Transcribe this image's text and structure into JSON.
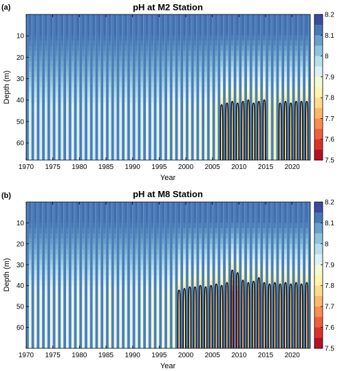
{
  "colors": {
    "colormap": [
      "#a50026",
      "#d73027",
      "#f46d43",
      "#fdae61",
      "#fee090",
      "#ffffbf",
      "#e0f3f8",
      "#abd9e9",
      "#74add1",
      "#4575b4",
      "#313695"
    ],
    "contour": "#000000"
  },
  "chart_data": [
    {
      "type": "heatmap",
      "panel_label": "(a)",
      "title": "pH at M2 Station",
      "xlabel": "Year",
      "ylabel": "Depth (m)",
      "xlim": [
        1970,
        2023.4
      ],
      "ylim": [
        0,
        68
      ],
      "y_reversed": true,
      "xticks": [
        "1970",
        "1975",
        "1980",
        "1985",
        "1990",
        "1995",
        "2000",
        "2005",
        "2010",
        "2015",
        "2020"
      ],
      "yticks": [
        "10",
        "20",
        "30",
        "40",
        "50",
        "60"
      ],
      "colorbar": {
        "range": [
          7.5,
          8.2
        ],
        "ticks": [
          "8.2",
          "8.1",
          "8",
          "7.9",
          "7.8",
          "7.7",
          "7.6",
          "7.5"
        ]
      },
      "contour_level": 7.8,
      "seasonal_minima": [
        {
          "year": 1970,
          "min_ph": 7.93
        },
        {
          "year": 1971,
          "min_ph": 7.92
        },
        {
          "year": 1972,
          "min_ph": 7.94
        },
        {
          "year": 1973,
          "min_ph": 7.93
        },
        {
          "year": 1974,
          "min_ph": 7.94
        },
        {
          "year": 1975,
          "min_ph": 7.93
        },
        {
          "year": 1976,
          "min_ph": 7.94
        },
        {
          "year": 1977,
          "min_ph": 7.93
        },
        {
          "year": 1978,
          "min_ph": 7.92
        },
        {
          "year": 1979,
          "min_ph": 7.93
        },
        {
          "year": 1980,
          "min_ph": 7.94
        },
        {
          "year": 1981,
          "min_ph": 7.93
        },
        {
          "year": 1982,
          "min_ph": 7.94
        },
        {
          "year": 1983,
          "min_ph": 7.93
        },
        {
          "year": 1984,
          "min_ph": 7.92
        },
        {
          "year": 1985,
          "min_ph": 7.93
        },
        {
          "year": 1986,
          "min_ph": 7.94
        },
        {
          "year": 1987,
          "min_ph": 7.93
        },
        {
          "year": 1988,
          "min_ph": 7.92
        },
        {
          "year": 1989,
          "min_ph": 7.93
        },
        {
          "year": 1990,
          "min_ph": 7.94
        },
        {
          "year": 1991,
          "min_ph": 7.93
        },
        {
          "year": 1992,
          "min_ph": 7.92
        },
        {
          "year": 1993,
          "min_ph": 7.93
        },
        {
          "year": 1994,
          "min_ph": 7.92
        },
        {
          "year": 1995,
          "min_ph": 7.93
        },
        {
          "year": 1996,
          "min_ph": 7.89
        },
        {
          "year": 1997,
          "min_ph": 7.88
        },
        {
          "year": 1998,
          "min_ph": 7.9
        },
        {
          "year": 1999,
          "min_ph": 7.89
        },
        {
          "year": 2000,
          "min_ph": 7.88
        },
        {
          "year": 2001,
          "min_ph": 7.9
        },
        {
          "year": 2002,
          "min_ph": 7.88
        },
        {
          "year": 2003,
          "min_ph": 7.89
        },
        {
          "year": 2004,
          "min_ph": 7.87
        },
        {
          "year": 2005,
          "min_ph": 7.86
        },
        {
          "year": 2006,
          "min_ph": 7.79
        },
        {
          "year": 2007,
          "min_ph": 7.78
        },
        {
          "year": 2008,
          "min_ph": 7.77
        },
        {
          "year": 2009,
          "min_ph": 7.78
        },
        {
          "year": 2010,
          "min_ph": 7.77
        },
        {
          "year": 2011,
          "min_ph": 7.76
        },
        {
          "year": 2012,
          "min_ph": 7.78
        },
        {
          "year": 2013,
          "min_ph": 7.77
        },
        {
          "year": 2014,
          "min_ph": 7.76
        },
        {
          "year": 2015,
          "min_ph": 7.83
        },
        {
          "year": 2016,
          "min_ph": 7.82
        },
        {
          "year": 2017,
          "min_ph": 7.78
        },
        {
          "year": 2018,
          "min_ph": 7.77
        },
        {
          "year": 2019,
          "min_ph": 7.78
        },
        {
          "year": 2020,
          "min_ph": 7.77
        },
        {
          "year": 2021,
          "min_ph": 7.77
        },
        {
          "year": 2022,
          "min_ph": 7.77
        },
        {
          "year": 2023,
          "min_ph": 7.78
        }
      ]
    },
    {
      "type": "heatmap",
      "panel_label": "(b)",
      "title": "pH at M8 Station",
      "xlabel": "Year",
      "ylabel": "Depth (m)",
      "xlim": [
        1970,
        2023.4
      ],
      "ylim": [
        0,
        70
      ],
      "y_reversed": true,
      "xticks": [
        "1970",
        "1975",
        "1980",
        "1985",
        "1990",
        "1995",
        "2000",
        "2005",
        "2010",
        "2015",
        "2020"
      ],
      "yticks": [
        "10",
        "20",
        "30",
        "40",
        "50",
        "60"
      ],
      "colorbar": {
        "range": [
          7.5,
          8.2
        ],
        "ticks": [
          "8.2",
          "8.1",
          "8",
          "7.9",
          "7.8",
          "7.7",
          "7.6",
          "7.5"
        ]
      },
      "contour_level": 7.8,
      "seasonal_minima": [
        {
          "year": 1970,
          "min_ph": 7.9
        },
        {
          "year": 1971,
          "min_ph": 7.89
        },
        {
          "year": 1972,
          "min_ph": 7.9
        },
        {
          "year": 1973,
          "min_ph": 7.91
        },
        {
          "year": 1974,
          "min_ph": 7.9
        },
        {
          "year": 1975,
          "min_ph": 7.89
        },
        {
          "year": 1976,
          "min_ph": 7.9
        },
        {
          "year": 1977,
          "min_ph": 7.91
        },
        {
          "year": 1978,
          "min_ph": 7.9
        },
        {
          "year": 1979,
          "min_ph": 7.89
        },
        {
          "year": 1980,
          "min_ph": 7.9
        },
        {
          "year": 1981,
          "min_ph": 7.91
        },
        {
          "year": 1982,
          "min_ph": 7.9
        },
        {
          "year": 1983,
          "min_ph": 7.89
        },
        {
          "year": 1984,
          "min_ph": 7.9
        },
        {
          "year": 1985,
          "min_ph": 7.86
        },
        {
          "year": 1986,
          "min_ph": 7.9
        },
        {
          "year": 1987,
          "min_ph": 7.89
        },
        {
          "year": 1988,
          "min_ph": 7.9
        },
        {
          "year": 1989,
          "min_ph": 7.91
        },
        {
          "year": 1990,
          "min_ph": 7.9
        },
        {
          "year": 1991,
          "min_ph": 7.89
        },
        {
          "year": 1992,
          "min_ph": 7.9
        },
        {
          "year": 1993,
          "min_ph": 7.87
        },
        {
          "year": 1994,
          "min_ph": 7.89
        },
        {
          "year": 1995,
          "min_ph": 7.88
        },
        {
          "year": 1996,
          "min_ph": 7.87
        },
        {
          "year": 1997,
          "min_ph": 7.86
        },
        {
          "year": 1998,
          "min_ph": 7.79
        },
        {
          "year": 1999,
          "min_ph": 7.78
        },
        {
          "year": 2000,
          "min_ph": 7.77
        },
        {
          "year": 2001,
          "min_ph": 7.77
        },
        {
          "year": 2002,
          "min_ph": 7.76
        },
        {
          "year": 2003,
          "min_ph": 7.77
        },
        {
          "year": 2004,
          "min_ph": 7.76
        },
        {
          "year": 2005,
          "min_ph": 7.75
        },
        {
          "year": 2006,
          "min_ph": 7.76
        },
        {
          "year": 2007,
          "min_ph": 7.74
        },
        {
          "year": 2008,
          "min_ph": 7.62
        },
        {
          "year": 2009,
          "min_ph": 7.65
        },
        {
          "year": 2010,
          "min_ph": 7.72
        },
        {
          "year": 2011,
          "min_ph": 7.74
        },
        {
          "year": 2012,
          "min_ph": 7.73
        },
        {
          "year": 2013,
          "min_ph": 7.7
        },
        {
          "year": 2014,
          "min_ph": 7.74
        },
        {
          "year": 2015,
          "min_ph": 7.75
        },
        {
          "year": 2016,
          "min_ph": 7.74
        },
        {
          "year": 2017,
          "min_ph": 7.75
        },
        {
          "year": 2018,
          "min_ph": 7.74
        },
        {
          "year": 2019,
          "min_ph": 7.75
        },
        {
          "year": 2020,
          "min_ph": 7.74
        },
        {
          "year": 2021,
          "min_ph": 7.75
        },
        {
          "year": 2022,
          "min_ph": 7.74
        },
        {
          "year": 2023,
          "min_ph": 7.75
        }
      ]
    }
  ]
}
